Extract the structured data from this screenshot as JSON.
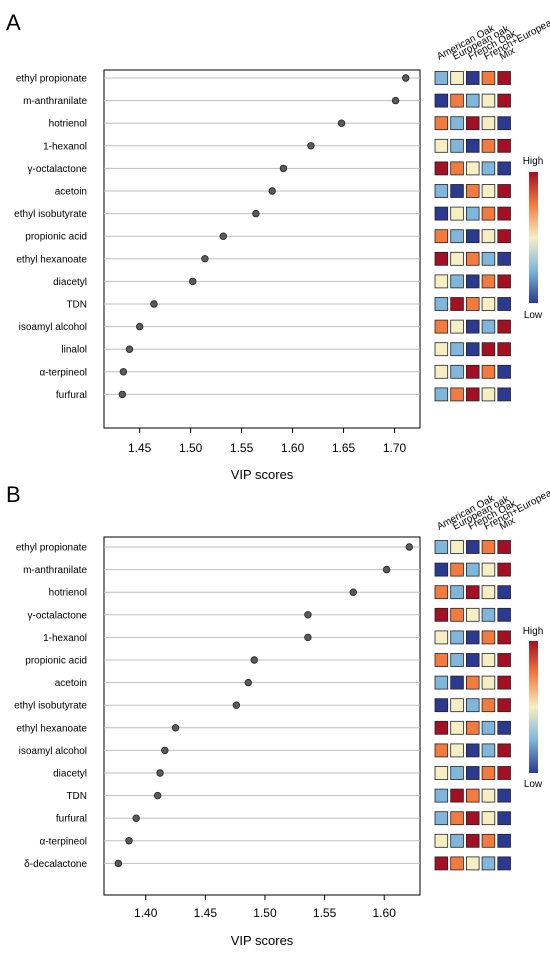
{
  "colors": {
    "very_low": "#2b3990",
    "low": "#7fb6d9",
    "mid": "#f6efc4",
    "high": "#f47b40",
    "very_high": "#a50f23",
    "point": "#5a5a5a",
    "grid": "#bfbfbf"
  },
  "chart_data": [
    {
      "type": "scatter",
      "panel_label": "A",
      "xlabel": "VIP scores",
      "xlim": [
        1.415,
        1.725
      ],
      "x_ticks": [
        1.45,
        1.5,
        1.55,
        1.6,
        1.65,
        1.7
      ],
      "x_tick_labels": [
        "1.45",
        "1.50",
        "1.55",
        "1.60",
        "1.65",
        "1.70"
      ],
      "columns": [
        "American Oak",
        "European oak",
        "French Oak",
        "French+European oak",
        "Mix"
      ],
      "scale_high": "High",
      "scale_low": "Low",
      "rows": [
        {
          "label": "ethyl propionate",
          "vip": 1.711,
          "cells": [
            "low",
            "mid",
            "very_low",
            "high",
            "very_high"
          ]
        },
        {
          "label": "m-anthranilate",
          "vip": 1.701,
          "cells": [
            "very_low",
            "high",
            "low",
            "mid",
            "very_high"
          ]
        },
        {
          "label": "hotrienol",
          "vip": 1.648,
          "cells": [
            "high",
            "low",
            "very_high",
            "mid",
            "very_low"
          ]
        },
        {
          "label": "1-hexanol",
          "vip": 1.618,
          "cells": [
            "mid",
            "low",
            "very_low",
            "high",
            "very_high"
          ]
        },
        {
          "label": "γ-octalactone",
          "vip": 1.591,
          "cells": [
            "very_high",
            "high",
            "mid",
            "low",
            "very_low"
          ]
        },
        {
          "label": "acetoin",
          "vip": 1.58,
          "cells": [
            "low",
            "very_low",
            "high",
            "mid",
            "very_high"
          ]
        },
        {
          "label": "ethyl isobutyrate",
          "vip": 1.564,
          "cells": [
            "very_low",
            "mid",
            "low",
            "high",
            "very_high"
          ]
        },
        {
          "label": "propionic acid",
          "vip": 1.532,
          "cells": [
            "high",
            "low",
            "very_low",
            "mid",
            "very_high"
          ]
        },
        {
          "label": "ethyl hexanoate",
          "vip": 1.514,
          "cells": [
            "very_high",
            "mid",
            "high",
            "low",
            "very_low"
          ]
        },
        {
          "label": "diacetyl",
          "vip": 1.502,
          "cells": [
            "mid",
            "low",
            "very_low",
            "high",
            "very_high"
          ]
        },
        {
          "label": "TDN",
          "vip": 1.464,
          "cells": [
            "low",
            "very_high",
            "high",
            "mid",
            "very_low"
          ]
        },
        {
          "label": "isoamyl alcohol",
          "vip": 1.45,
          "cells": [
            "high",
            "mid",
            "very_low",
            "low",
            "very_high"
          ]
        },
        {
          "label": "linalol",
          "vip": 1.44,
          "cells": [
            "mid",
            "low",
            "very_low",
            "very_high",
            "very_high"
          ]
        },
        {
          "label": "α-terpineol",
          "vip": 1.434,
          "cells": [
            "mid",
            "low",
            "very_high",
            "high",
            "very_low"
          ]
        },
        {
          "label": "furfural",
          "vip": 1.433,
          "cells": [
            "low",
            "high",
            "very_high",
            "mid",
            "very_low"
          ]
        }
      ]
    },
    {
      "type": "scatter",
      "panel_label": "B",
      "xlabel": "VIP scores",
      "xlim": [
        1.365,
        1.63
      ],
      "x_ticks": [
        1.4,
        1.45,
        1.5,
        1.55,
        1.6
      ],
      "x_tick_labels": [
        "1.40",
        "1.45",
        "1.50",
        "1.55",
        "1.60"
      ],
      "columns": [
        "American Oak",
        "European oak",
        "French Oak",
        "French+European oak",
        "Mix"
      ],
      "scale_high": "High",
      "scale_low": "Low",
      "rows": [
        {
          "label": "ethyl propionate",
          "vip": 1.621,
          "cells": [
            "low",
            "mid",
            "very_low",
            "high",
            "very_high"
          ]
        },
        {
          "label": "m-anthranilate",
          "vip": 1.602,
          "cells": [
            "very_low",
            "high",
            "low",
            "mid",
            "very_high"
          ]
        },
        {
          "label": "hotrienol",
          "vip": 1.574,
          "cells": [
            "high",
            "low",
            "very_high",
            "mid",
            "very_low"
          ]
        },
        {
          "label": "γ-octalactone",
          "vip": 1.536,
          "cells": [
            "very_high",
            "high",
            "mid",
            "low",
            "very_low"
          ]
        },
        {
          "label": "1-hexanol",
          "vip": 1.536,
          "cells": [
            "mid",
            "low",
            "very_low",
            "high",
            "very_high"
          ]
        },
        {
          "label": "propionic acid",
          "vip": 1.491,
          "cells": [
            "high",
            "low",
            "very_low",
            "mid",
            "very_high"
          ]
        },
        {
          "label": "acetoin",
          "vip": 1.486,
          "cells": [
            "low",
            "very_low",
            "high",
            "mid",
            "very_high"
          ]
        },
        {
          "label": "ethyl isobutyrate",
          "vip": 1.476,
          "cells": [
            "very_low",
            "mid",
            "low",
            "high",
            "very_high"
          ]
        },
        {
          "label": "ethyl hexanoate",
          "vip": 1.425,
          "cells": [
            "very_high",
            "mid",
            "high",
            "low",
            "very_low"
          ]
        },
        {
          "label": "isoamyl alcohol",
          "vip": 1.416,
          "cells": [
            "high",
            "mid",
            "very_low",
            "low",
            "very_high"
          ]
        },
        {
          "label": "diacetyl",
          "vip": 1.412,
          "cells": [
            "mid",
            "low",
            "very_low",
            "high",
            "very_high"
          ]
        },
        {
          "label": "TDN",
          "vip": 1.41,
          "cells": [
            "low",
            "very_high",
            "high",
            "mid",
            "very_low"
          ]
        },
        {
          "label": "furfural",
          "vip": 1.392,
          "cells": [
            "low",
            "high",
            "very_high",
            "mid",
            "very_low"
          ]
        },
        {
          "label": "α-terpineol",
          "vip": 1.386,
          "cells": [
            "mid",
            "low",
            "very_high",
            "high",
            "very_low"
          ]
        },
        {
          "label": "δ-decalactone",
          "vip": 1.377,
          "cells": [
            "very_high",
            "high",
            "mid",
            "low",
            "very_low"
          ]
        }
      ]
    }
  ]
}
